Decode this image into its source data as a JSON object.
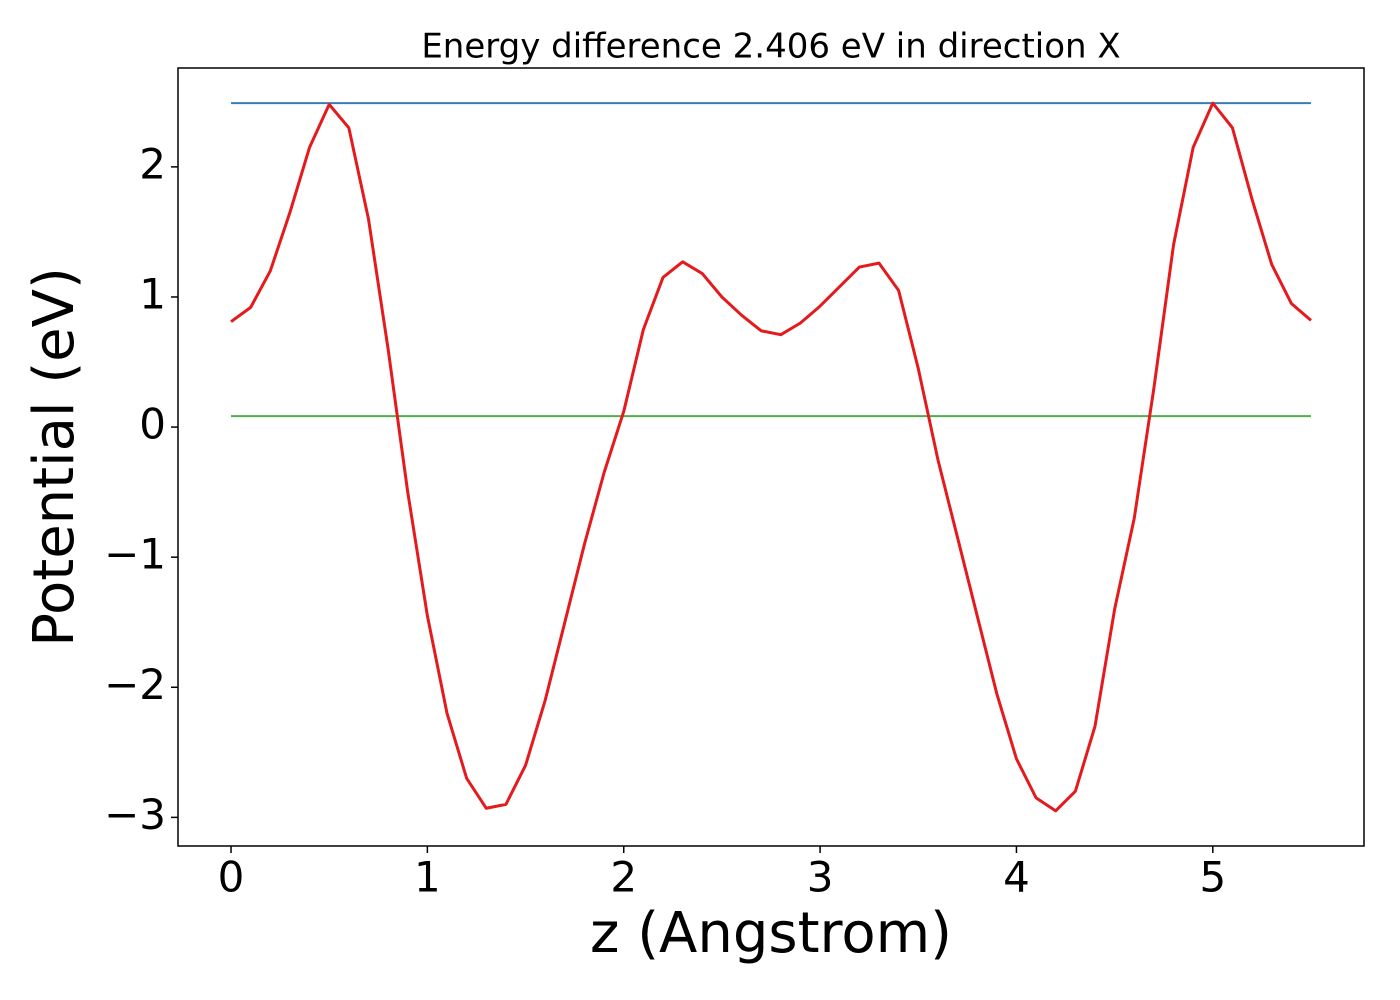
{
  "chart_data": {
    "type": "line",
    "title": "Energy difference 2.406 eV in direction X",
    "xlabel": "z (Angstrom)",
    "ylabel": "Potential (eV)",
    "x": [
      0,
      0.1,
      0.2,
      0.3,
      0.4,
      0.5,
      0.6,
      0.7,
      0.8,
      0.9,
      1.0,
      1.1,
      1.2,
      1.3,
      1.4,
      1.5,
      1.6,
      1.7,
      1.8,
      1.9,
      2.0,
      2.1,
      2.2,
      2.3,
      2.4,
      2.5,
      2.6,
      2.7,
      2.8,
      2.9,
      3.0,
      3.1,
      3.2,
      3.3,
      3.4,
      3.5,
      3.6,
      3.7,
      3.8,
      3.9,
      4.0,
      4.1,
      4.2,
      4.3,
      4.4,
      4.5,
      4.6,
      4.7,
      4.8,
      4.9,
      5.0,
      5.1,
      5.2,
      5.3,
      5.4,
      5.5
    ],
    "series": [
      {
        "color": "#e41a1c",
        "values": [
          0.81,
          0.92,
          1.2,
          1.65,
          2.15,
          2.48,
          2.3,
          1.6,
          0.6,
          -0.5,
          -1.45,
          -2.2,
          -2.7,
          -2.93,
          -2.9,
          -2.6,
          -2.1,
          -1.5,
          -0.9,
          -0.35,
          0.12,
          0.75,
          1.15,
          1.27,
          1.18,
          1.0,
          0.86,
          0.74,
          0.71,
          0.8,
          0.93,
          1.08,
          1.23,
          1.26,
          1.05,
          0.45,
          -0.25,
          -0.85,
          -1.45,
          -2.05,
          -2.55,
          -2.85,
          -2.95,
          -2.8,
          -2.3,
          -1.4,
          -0.7,
          0.3,
          1.4,
          2.15,
          2.49,
          2.3,
          1.75,
          1.25,
          0.95,
          0.82
        ]
      }
    ],
    "hlines": [
      {
        "value": 2.49,
        "color": "#377eb8"
      },
      {
        "value": 0.084,
        "color": "#4daf4a"
      }
    ],
    "xlim": [
      -0.27,
      5.77
    ],
    "ylim": [
      -3.22,
      2.76
    ],
    "xticks": [
      0,
      1,
      2,
      3,
      4,
      5
    ],
    "yticks": [
      {
        "value": -3,
        "label": "−3"
      },
      {
        "value": -2,
        "label": "−2"
      },
      {
        "value": -1,
        "label": "−1"
      },
      0,
      1,
      2
    ],
    "grid": false
  }
}
